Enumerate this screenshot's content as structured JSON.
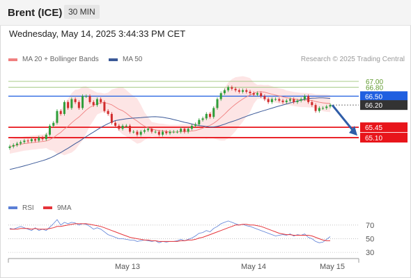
{
  "header": {
    "title": "Brent (ICE)",
    "period": "30 MIN"
  },
  "datetime": "Wednesday, May 14, 2025 3:44:33 PM CET",
  "legend": [
    {
      "label": "MA 20 + Bollinger Bands",
      "color": "#f08080"
    },
    {
      "label": "MA 50",
      "color": "#3b5998"
    }
  ],
  "credit": "Research © 2025 Trading Central",
  "colors": {
    "up": "#2e9e3a",
    "down": "#d12c2c",
    "resistance": "#1f5fe0",
    "support": "#e8151b",
    "target": "#7bb34a",
    "last": "#333333",
    "band": "#fde0e0"
  },
  "chart_data": [
    {
      "type": "candlestick",
      "title": "Brent (ICE)",
      "timeframe": "30 MIN",
      "x_labels": [
        "May 13",
        "May 14",
        "May 15"
      ],
      "ylim": [
        63.6,
        67.4
      ],
      "close_series": [
        64.8,
        64.85,
        64.9,
        64.95,
        65.0,
        64.98,
        65.05,
        65.0,
        65.1,
        65.05,
        65.2,
        65.5,
        65.6,
        66.0,
        65.9,
        66.3,
        66.1,
        66.4,
        66.3,
        66.1,
        66.5,
        66.5,
        66.3,
        66.2,
        66.4,
        66.3,
        66.0,
        65.9,
        65.6,
        65.5,
        65.4,
        65.5,
        65.5,
        65.3,
        65.3,
        65.2,
        65.3,
        65.35,
        65.4,
        65.3,
        65.3,
        65.2,
        65.3,
        65.25,
        65.3,
        65.3,
        65.3,
        65.4,
        65.3,
        65.4,
        65.5,
        65.55,
        65.7,
        65.75,
        65.9,
        65.8,
        66.1,
        66.4,
        66.6,
        66.7,
        66.8,
        66.75,
        66.7,
        66.65,
        66.7,
        66.65,
        66.6,
        66.55,
        66.6,
        66.5,
        66.4,
        66.3,
        66.4,
        66.4,
        66.35,
        66.3,
        66.35,
        66.4,
        66.3,
        66.35,
        66.4,
        66.5,
        66.3,
        66.2,
        66.0,
        66.1,
        66.1,
        66.15,
        66.2
      ],
      "lines": [
        {
          "name": "",
          "kind": "target",
          "value": 67.0,
          "label": "67.00"
        },
        {
          "name": "",
          "kind": "target",
          "value": 66.8,
          "label": "66.80"
        },
        {
          "name": "",
          "kind": "resistance",
          "value": 66.5,
          "label": "66.50"
        },
        {
          "name": "",
          "kind": "last",
          "value": 66.2,
          "label": "66.20"
        },
        {
          "name": "",
          "kind": "support",
          "value": 65.45,
          "label": "65.45"
        },
        {
          "name": "",
          "kind": "support",
          "value": 65.1,
          "label": "65.10"
        }
      ],
      "forecast_arrow": {
        "from": 66.2,
        "to": 65.45
      },
      "series": [
        {
          "name": "MA 20 + Bollinger Bands",
          "color": "#f08080"
        },
        {
          "name": "MA 50",
          "color": "#3b5998"
        }
      ]
    },
    {
      "type": "line",
      "legend": [
        "RSI",
        "9MA"
      ],
      "ylim": [
        25,
        80
      ],
      "yticks": [
        "70",
        "50",
        "30"
      ],
      "series": [
        {
          "name": "RSI",
          "color": "#5b7fd6",
          "values": [
            65,
            64,
            66,
            68,
            66,
            64,
            62,
            66,
            62,
            64,
            62,
            67,
            72,
            78,
            70,
            74,
            72,
            74,
            73,
            70,
            72,
            71,
            68,
            64,
            66,
            64,
            60,
            56,
            54,
            52,
            50,
            50,
            49,
            48,
            48,
            46,
            47,
            48,
            47,
            46,
            47,
            44,
            46,
            45,
            46,
            46,
            47,
            49,
            47,
            49,
            51,
            54,
            58,
            59,
            62,
            60,
            65,
            68,
            72,
            74,
            76,
            74,
            72,
            70,
            71,
            69,
            68,
            66,
            64,
            62,
            60,
            58,
            56,
            54,
            55,
            56,
            55,
            57,
            54,
            56,
            55,
            57,
            52,
            50,
            46,
            44,
            45,
            49,
            53
          ]
        },
        {
          "name": "9MA",
          "color": "#e5343a",
          "values": [
            64,
            64,
            64,
            65,
            65,
            65,
            64,
            65,
            64,
            64,
            64,
            65,
            66,
            68,
            68,
            69,
            70,
            71,
            72,
            72,
            72,
            72,
            71,
            70,
            69,
            68,
            66,
            64,
            62,
            60,
            58,
            56,
            54,
            52,
            51,
            50,
            49,
            48,
            48,
            47,
            47,
            46,
            46,
            46,
            46,
            46,
            46,
            47,
            47,
            48,
            48,
            49,
            51,
            52,
            54,
            56,
            58,
            60,
            62,
            64,
            66,
            68,
            70,
            70,
            71,
            71,
            70,
            70,
            69,
            68,
            66,
            64,
            62,
            60,
            58,
            57,
            56,
            56,
            55,
            55,
            55,
            55,
            55,
            54,
            52,
            50,
            48,
            47,
            47
          ]
        }
      ]
    }
  ]
}
